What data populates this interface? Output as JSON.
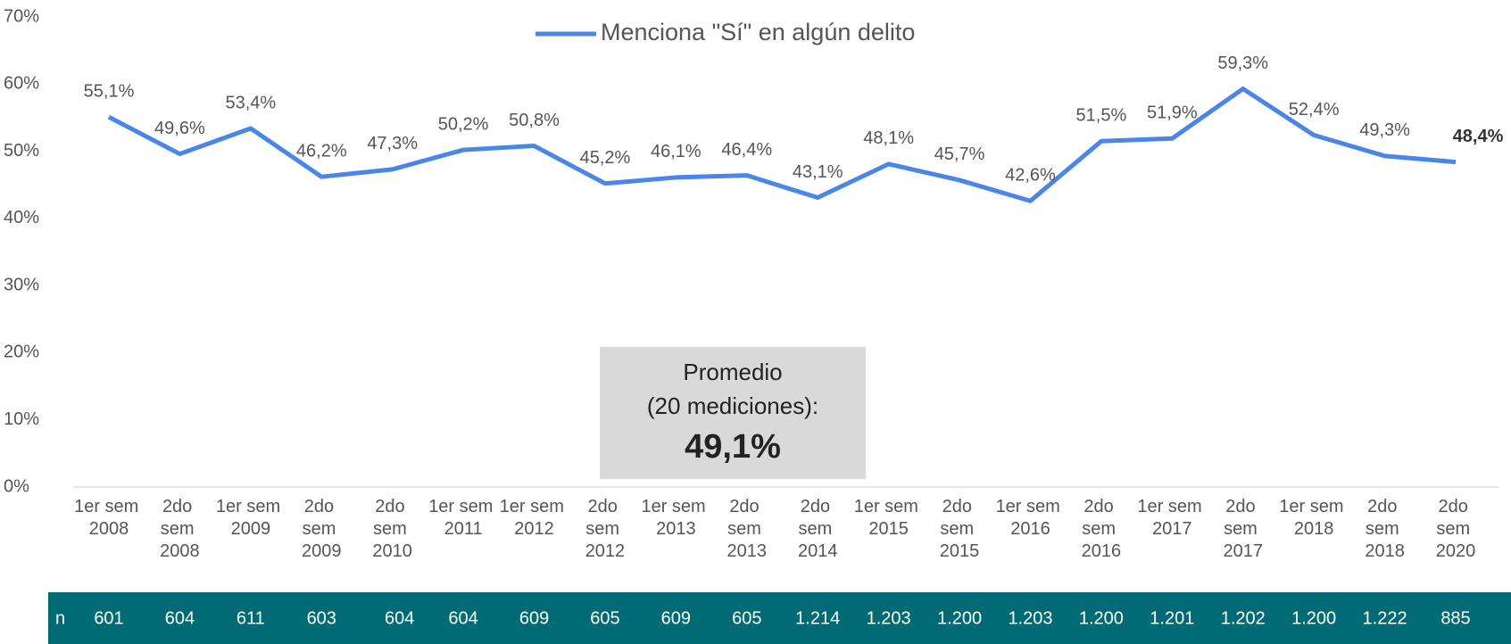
{
  "chart_data": {
    "type": "line",
    "legend": "Menciona \"Sí\" en algún delito",
    "color": "#4a86e8",
    "categories": [
      "1er sem 2008",
      "2do sem 2008",
      "1er sem 2009",
      "2do sem 2009",
      "2do sem 2010",
      "1er sem 2011",
      "1er sem 2012",
      "2do sem 2012",
      "1er sem 2013",
      "2do sem 2013",
      "2do sem 2014",
      "1er sem 2015",
      "2do sem 2015",
      "1er sem 2016",
      "2do sem 2016",
      "1er sem 2017",
      "2do sem 2017",
      "1er sem 2018",
      "2do sem 2018",
      "2do sem 2020"
    ],
    "values": [
      55.1,
      49.6,
      53.4,
      46.2,
      47.3,
      50.2,
      50.8,
      45.2,
      46.1,
      46.4,
      43.1,
      48.1,
      45.7,
      42.6,
      51.5,
      51.9,
      59.3,
      52.4,
      49.3,
      48.4
    ],
    "value_labels": [
      "55,1%",
      "49,6%",
      "53,4%",
      "46,2%",
      "47,3%",
      "50,2%",
      "50,8%",
      "45,2%",
      "46,1%",
      "46,4%",
      "43,1%",
      "48,1%",
      "45,7%",
      "42,6%",
      "51,5%",
      "51,9%",
      "59,3%",
      "52,4%",
      "49,3%",
      "48,4%"
    ],
    "ylim": [
      0,
      70
    ],
    "yticks": [
      {
        "value": 0,
        "label": "0%"
      },
      {
        "value": 10,
        "label": "10%"
      },
      {
        "value": 20,
        "label": "20%"
      },
      {
        "value": 30,
        "label": "30%"
      },
      {
        "value": 40,
        "label": "40%"
      },
      {
        "value": 50,
        "label": "50%"
      },
      {
        "value": 60,
        "label": "60%"
      },
      {
        "value": 70,
        "label": "70%"
      }
    ],
    "annotation": [
      "Promedio",
      "(20 mediciones):",
      "49,1%"
    ],
    "n_row": {
      "label": "n",
      "values": [
        "601",
        "604",
        "611",
        "603",
        "604",
        "604",
        "609",
        "605",
        "609",
        "605",
        "1.214",
        "1.203",
        "1.200",
        "1.203",
        "1.200",
        "1.201",
        "1.202",
        "1.200",
        "1.222",
        "885"
      ]
    }
  }
}
